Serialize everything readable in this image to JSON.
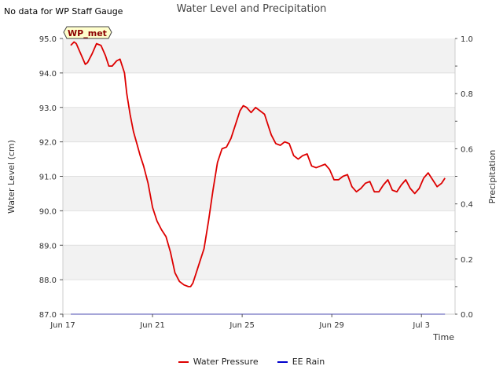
{
  "note": "No data for WP Staff Gauge",
  "chart_data": {
    "type": "line",
    "title": "Water Level and Precipitation",
    "xlabel": "Time",
    "ylabel": "Water Level (cm)",
    "ylabel_right": "Precipitation",
    "annotation": "WP_met",
    "x_ticks": [
      "Jun 17",
      "Jun 21",
      "Jun 25",
      "Jun 29",
      "Jul 3"
    ],
    "y_ticks": [
      "87.0",
      "88.0",
      "89.0",
      "90.0",
      "91.0",
      "92.0",
      "93.0",
      "94.0",
      "95.0"
    ],
    "y_right_ticks": [
      "0.0",
      "0.2",
      "0.4",
      "0.6",
      "0.8",
      "1.0"
    ],
    "ylim": [
      87,
      95
    ],
    "ylim_right": [
      0,
      1
    ],
    "xlim_days": [
      0,
      17.5
    ],
    "grid": "horizontal bands",
    "legend_position": "bottom",
    "series": [
      {
        "name": "Water Pressure",
        "color": "#dd0000",
        "axis": "left",
        "x_days": [
          0.35,
          0.5,
          0.6,
          0.8,
          1.0,
          1.1,
          1.3,
          1.5,
          1.7,
          1.9,
          2.05,
          2.2,
          2.4,
          2.55,
          2.75,
          2.85,
          3.0,
          3.15,
          3.3,
          3.45,
          3.6,
          3.8,
          4.0,
          4.2,
          4.4,
          4.6,
          4.8,
          5.0,
          5.2,
          5.4,
          5.6,
          5.7,
          5.8,
          5.95,
          6.1,
          6.3,
          6.5,
          6.7,
          6.9,
          7.1,
          7.3,
          7.5,
          7.7,
          7.9,
          8.05,
          8.2,
          8.4,
          8.6,
          8.8,
          9.0,
          9.2,
          9.3,
          9.5,
          9.7,
          9.9,
          10.1,
          10.3,
          10.5,
          10.7,
          10.9,
          11.1,
          11.3,
          11.5,
          11.7,
          11.9,
          12.1,
          12.3,
          12.5,
          12.7,
          12.9,
          13.1,
          13.3,
          13.5,
          13.7,
          13.9,
          14.1,
          14.3,
          14.5,
          14.7,
          14.9,
          15.1,
          15.3,
          15.5,
          15.7,
          15.9,
          16.1,
          16.3,
          16.5,
          16.7,
          16.9,
          17.05
        ],
        "values": [
          94.8,
          94.9,
          94.85,
          94.55,
          94.25,
          94.3,
          94.55,
          94.85,
          94.8,
          94.5,
          94.2,
          94.2,
          94.35,
          94.4,
          94.0,
          93.4,
          92.8,
          92.3,
          91.95,
          91.6,
          91.3,
          90.8,
          90.1,
          89.7,
          89.45,
          89.25,
          88.8,
          88.2,
          87.95,
          87.85,
          87.8,
          87.8,
          87.9,
          88.2,
          88.5,
          88.9,
          89.7,
          90.6,
          91.4,
          91.8,
          91.85,
          92.1,
          92.5,
          92.9,
          93.05,
          93.0,
          92.85,
          93.0,
          92.9,
          92.8,
          92.4,
          92.2,
          91.95,
          91.9,
          92.0,
          91.95,
          91.6,
          91.5,
          91.6,
          91.65,
          91.3,
          91.25,
          91.3,
          91.35,
          91.2,
          90.9,
          90.9,
          91.0,
          91.05,
          90.7,
          90.55,
          90.65,
          90.8,
          90.85,
          90.55,
          90.55,
          90.75,
          90.9,
          90.6,
          90.55,
          90.75,
          90.9,
          90.65,
          90.5,
          90.65,
          90.95,
          91.1,
          90.9,
          90.7,
          90.8,
          90.95
        ]
      },
      {
        "name": "EE Rain",
        "color": "#0000cc",
        "axis": "right",
        "x_days": [
          0.35,
          17.05
        ],
        "values": [
          0,
          0
        ]
      }
    ]
  }
}
